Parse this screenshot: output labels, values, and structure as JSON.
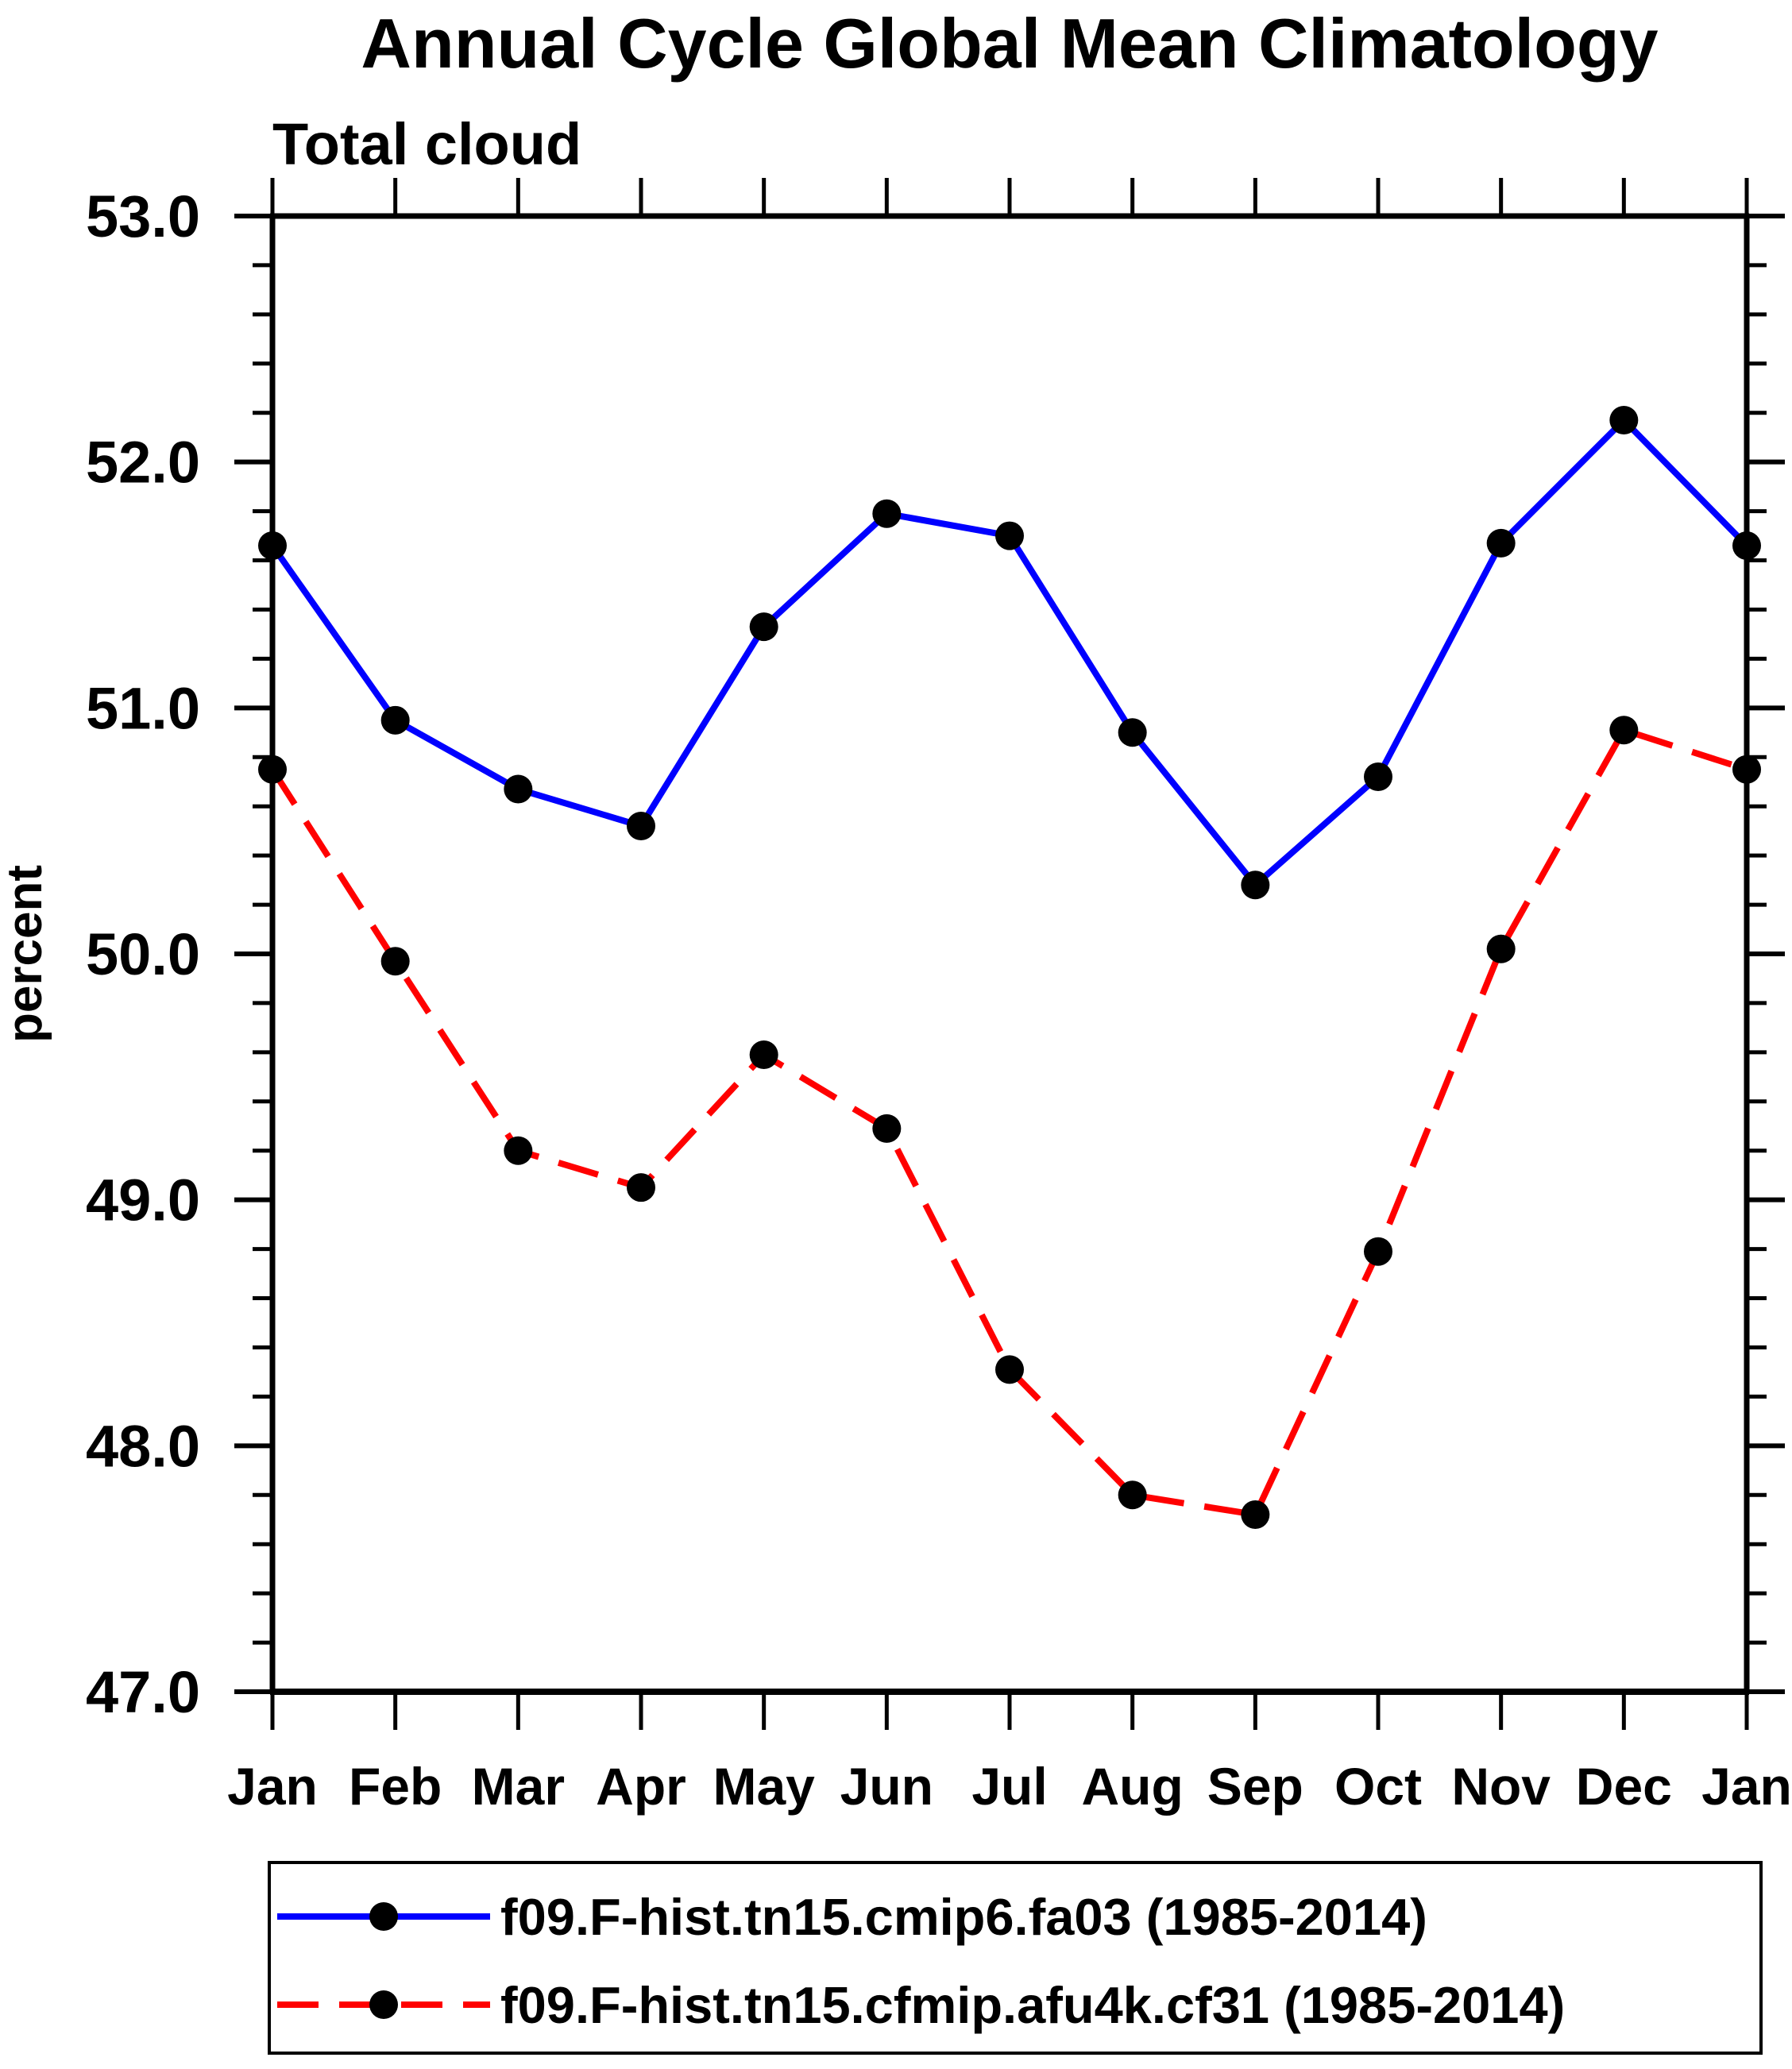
{
  "title": "Annual Cycle Global Mean Climatology",
  "subtitle": "Total cloud",
  "ylabel": "percent",
  "colors": {
    "background": "#ffffff",
    "axis": "#000000",
    "text": "#000000",
    "series1": "#0000ff",
    "series2": "#ff0000",
    "marker": "#000000"
  },
  "chart_data": {
    "type": "line",
    "categories": [
      "Jan",
      "Feb",
      "Mar",
      "Apr",
      "May",
      "Jun",
      "Jul",
      "Aug",
      "Sep",
      "Oct",
      "Nov",
      "Dec",
      "Jan"
    ],
    "xlabel": "",
    "ylabel": "percent",
    "ylim": [
      47.0,
      53.0
    ],
    "ytick_major": 1.0,
    "ytick_minor": 0.2,
    "ytick_labels": [
      "47.0",
      "48.0",
      "49.0",
      "50.0",
      "51.0",
      "52.0",
      "53.0"
    ],
    "grid": false,
    "legend_position": "bottom",
    "series": [
      {
        "name": "f09.F-hist.tn15.cmip6.fa03 (1985-2014)",
        "color": "#0000ff",
        "style": "solid",
        "marker": "circle",
        "marker_color": "#000000",
        "values": [
          51.66,
          50.95,
          50.67,
          50.52,
          51.33,
          51.79,
          51.7,
          50.9,
          50.28,
          50.72,
          51.67,
          52.17,
          51.66
        ]
      },
      {
        "name": "f09.F-hist.tn15.cfmip.afu4k.cf31 (1985-2014)",
        "color": "#ff0000",
        "style": "dashed",
        "marker": "circle",
        "marker_color": "#000000",
        "values": [
          50.75,
          49.97,
          49.2,
          49.05,
          49.59,
          49.29,
          48.31,
          47.8,
          47.72,
          48.79,
          50.02,
          50.91,
          50.75
        ]
      }
    ]
  }
}
